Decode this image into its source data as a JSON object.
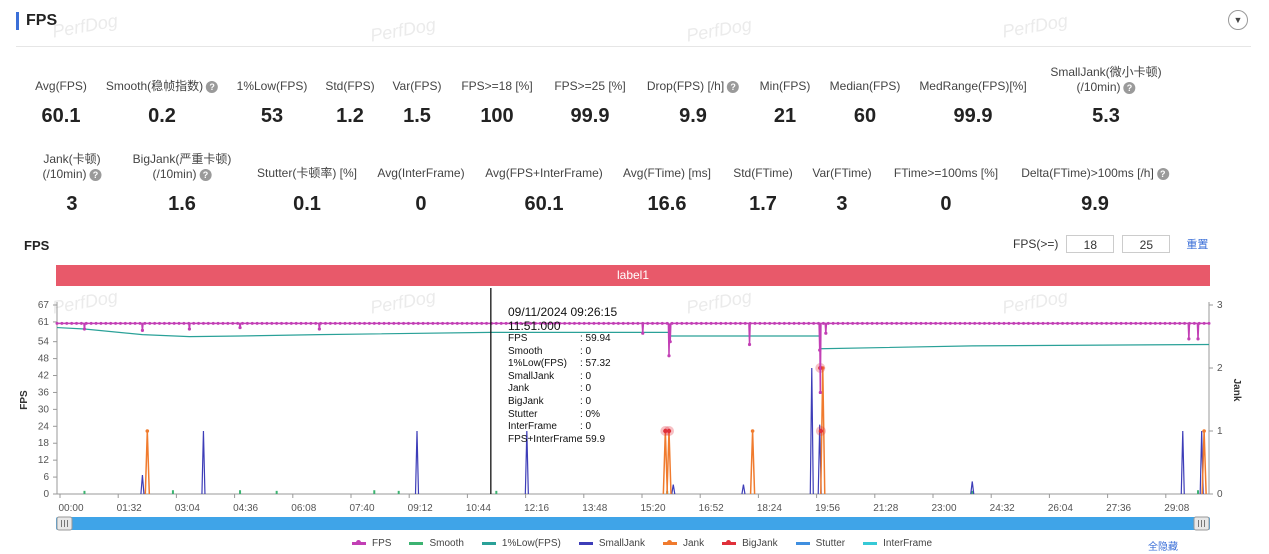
{
  "header": {
    "title": "FPS",
    "collapse_icon": "chevron-down-icon"
  },
  "metrics_row1": [
    {
      "label": "Avg(FPS)",
      "value": "60.1",
      "help": false
    },
    {
      "label": "Smooth(稳帧指数)",
      "value": "0.2",
      "help": true
    },
    {
      "label": "1%Low(FPS)",
      "value": "53",
      "help": false
    },
    {
      "label": "Std(FPS)",
      "value": "1.2",
      "help": false
    },
    {
      "label": "Var(FPS)",
      "value": "1.5",
      "help": false
    },
    {
      "label": "FPS>=18 [%]",
      "value": "100",
      "help": false
    },
    {
      "label": "FPS>=25 [%]",
      "value": "99.9",
      "help": false
    },
    {
      "label": "Drop(FPS) [/h]",
      "value": "9.9",
      "help": true
    },
    {
      "label": "Min(FPS)",
      "value": "21",
      "help": false
    },
    {
      "label": "Median(FPS)",
      "value": "60",
      "help": false
    },
    {
      "label": "MedRange(FPS)[%]",
      "value": "99.9",
      "help": false
    },
    {
      "label": "SmallJank(微小卡顿)",
      "label2": "(/10min)",
      "value": "5.3",
      "help": true
    }
  ],
  "metrics_row2": [
    {
      "label": "Jank(卡顿)",
      "label2": "(/10min)",
      "value": "3",
      "help": true
    },
    {
      "label": "BigJank(严重卡顿)",
      "label2": "(/10min)",
      "value": "1.6",
      "help": true
    },
    {
      "label": "Stutter(卡顿率) [%]",
      "value": "0.1",
      "help": false
    },
    {
      "label": "Avg(InterFrame)",
      "value": "0",
      "help": false
    },
    {
      "label": "Avg(FPS+InterFrame)",
      "value": "60.1",
      "help": false
    },
    {
      "label": "Avg(FTime) [ms]",
      "value": "16.6",
      "help": false
    },
    {
      "label": "Std(FTime)",
      "value": "1.7",
      "help": false
    },
    {
      "label": "Var(FTime)",
      "value": "3",
      "help": false
    },
    {
      "label": "FTime>=100ms [%]",
      "value": "0",
      "help": false
    },
    {
      "label": "Delta(FTime)>100ms [/h]",
      "value": "9.9",
      "help": true
    }
  ],
  "chart_header": {
    "title": "FPS",
    "threshold_label": "FPS(>=)",
    "threshold_1": "18",
    "threshold_2": "25",
    "reset_label": "重置"
  },
  "label_bar": "label1",
  "watermark": "PerfDog",
  "tooltip": {
    "time": "09/11/2024 09:26:15",
    "elapsed": "11:51.000",
    "rows": [
      {
        "k": "FPS",
        "v": ": 59.94"
      },
      {
        "k": "Smooth",
        "v": ": 0"
      },
      {
        "k": "1%Low(FPS)",
        "v": ": 57.32"
      },
      {
        "k": "SmallJank",
        "v": ": 0"
      },
      {
        "k": "Jank",
        "v": ": 0"
      },
      {
        "k": "BigJank",
        "v": ": 0"
      },
      {
        "k": "Stutter",
        "v": ": 0%"
      },
      {
        "k": "InterFrame",
        "v": ": 0"
      },
      {
        "k": "FPS+InterFrame",
        "v": ": 59.9"
      }
    ]
  },
  "legend": [
    {
      "name": "FPS",
      "color": "#c23fb5",
      "dot": true
    },
    {
      "name": "Smooth",
      "color": "#3cb371",
      "dot": false
    },
    {
      "name": "1%Low(FPS)",
      "color": "#2aa198",
      "dot": false
    },
    {
      "name": "SmallJank",
      "color": "#3d3db8",
      "dot": false
    },
    {
      "name": "Jank",
      "color": "#f07b2e",
      "dot": true
    },
    {
      "name": "BigJank",
      "color": "#e0303a",
      "dot": true
    },
    {
      "name": "Stutter",
      "color": "#3f8fe0",
      "dot": false
    },
    {
      "name": "InterFrame",
      "color": "#36c9d6",
      "dot": false
    }
  ],
  "hide_all_label": "全隐藏",
  "chart_data": {
    "type": "line",
    "xlabel": "",
    "ylabel": "FPS",
    "y2label": "Jank",
    "ylim": [
      0,
      67
    ],
    "y2lim": [
      0,
      3
    ],
    "yticks": [
      0,
      6,
      12,
      18,
      24,
      30,
      36,
      42,
      48,
      54,
      61,
      67
    ],
    "y2ticks": [
      0,
      1,
      2,
      3
    ],
    "xlim_s": [
      0,
      1888
    ],
    "xticks": [
      "00:00",
      "01:32",
      "03:04",
      "04:36",
      "06:08",
      "07:40",
      "09:12",
      "10:44",
      "12:16",
      "13:48",
      "15:20",
      "16:52",
      "18:24",
      "19:56",
      "21:28",
      "23:00",
      "24:32",
      "26:04",
      "27:36",
      "29:08"
    ],
    "cursor_s": 711,
    "series": [
      {
        "name": "FPS",
        "baseline": 60.5,
        "dips": [
          [
            45,
            58.5
          ],
          [
            140,
            58
          ],
          [
            217,
            58.5
          ],
          [
            300,
            59
          ],
          [
            430,
            58.5
          ],
          [
            960,
            57
          ],
          [
            1003,
            49
          ],
          [
            1005,
            54
          ],
          [
            1135,
            53
          ],
          [
            1250,
            51
          ],
          [
            1251,
            36
          ],
          [
            1260,
            57
          ],
          [
            1855,
            55
          ],
          [
            1870,
            55
          ]
        ]
      },
      {
        "name": "1%Low(FPS)",
        "points": [
          [
            0,
            59
          ],
          [
            45,
            58.5
          ],
          [
            140,
            56.5
          ],
          [
            217,
            55.8
          ],
          [
            300,
            56
          ],
          [
            430,
            56.5
          ],
          [
            711,
            57.3
          ],
          [
            1003,
            57.3
          ],
          [
            1005,
            56
          ],
          [
            1135,
            56
          ],
          [
            1250,
            56
          ],
          [
            1251,
            51.5
          ],
          [
            1500,
            52.5
          ],
          [
            1888,
            53
          ]
        ]
      },
      {
        "name": "SmallJank",
        "spikes": [
          [
            140,
            0.3
          ],
          [
            240,
            1
          ],
          [
            590,
            1
          ],
          [
            770,
            1
          ],
          [
            1010,
            0.15
          ],
          [
            1125,
            0.15
          ],
          [
            1237,
            2
          ],
          [
            1250,
            1.1
          ],
          [
            1500,
            0.2
          ],
          [
            1845,
            1
          ],
          [
            1876,
            1
          ]
        ]
      },
      {
        "name": "Jank",
        "spikes": [
          [
            148,
            1
          ],
          [
            997,
            1
          ],
          [
            1003,
            1
          ],
          [
            1140,
            1
          ],
          [
            1255,
            2
          ],
          [
            1880,
            1
          ]
        ]
      },
      {
        "name": "BigJank",
        "points": [
          [
            997,
            1
          ],
          [
            1003,
            1
          ],
          [
            1251,
            2
          ],
          [
            1252,
            1
          ]
        ]
      },
      {
        "name": "Smooth",
        "spikes": [
          [
            45,
            0.05
          ],
          [
            190,
            0.06
          ],
          [
            300,
            0.06
          ],
          [
            360,
            0.05
          ],
          [
            520,
            0.06
          ],
          [
            560,
            0.05
          ],
          [
            720,
            0.05
          ],
          [
            1000,
            0.05
          ],
          [
            1500,
            0.05
          ],
          [
            1870,
            0.06
          ]
        ]
      }
    ]
  }
}
